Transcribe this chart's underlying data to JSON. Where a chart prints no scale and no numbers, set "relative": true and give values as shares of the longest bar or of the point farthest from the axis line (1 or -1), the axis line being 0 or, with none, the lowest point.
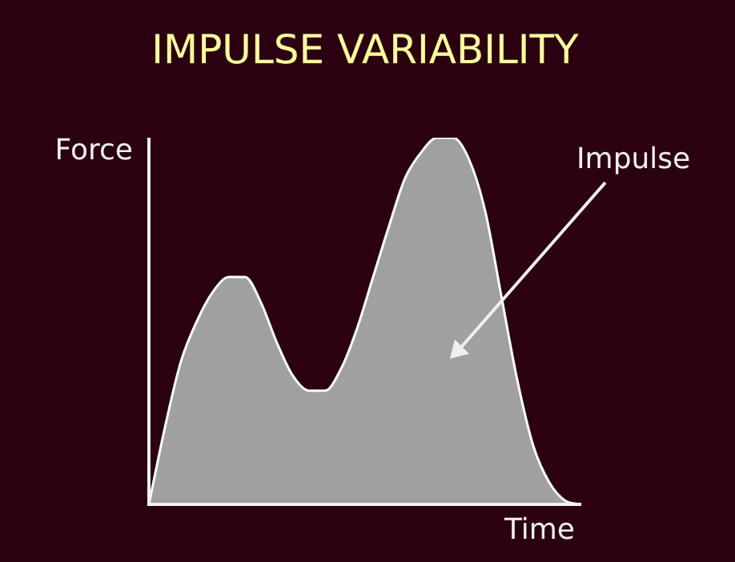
{
  "chart_data": {
    "type": "area",
    "title": "IMPULSE VARIABILITY",
    "xlabel": "Time",
    "ylabel": "Force",
    "annotations": [
      "Impulse"
    ],
    "relative": true,
    "color": "#a0a0a0",
    "categories": [
      null,
      null,
      null,
      null,
      null,
      null,
      null,
      null,
      null,
      null,
      null,
      null,
      null,
      null,
      null,
      null,
      null,
      null,
      null,
      null,
      null,
      null,
      null,
      null,
      null,
      null,
      null,
      null
    ],
    "values": [
      0,
      0.21,
      0.39,
      0.5,
      0.58,
      0.62,
      0.62,
      0.55,
      0.44,
      0.35,
      0.31,
      0.31,
      0.37,
      0.48,
      0.62,
      0.76,
      0.89,
      0.96,
      1,
      1,
      0.94,
      0.8,
      0.57,
      0.34,
      0.16,
      0.06,
      0.01,
      0
    ]
  }
}
